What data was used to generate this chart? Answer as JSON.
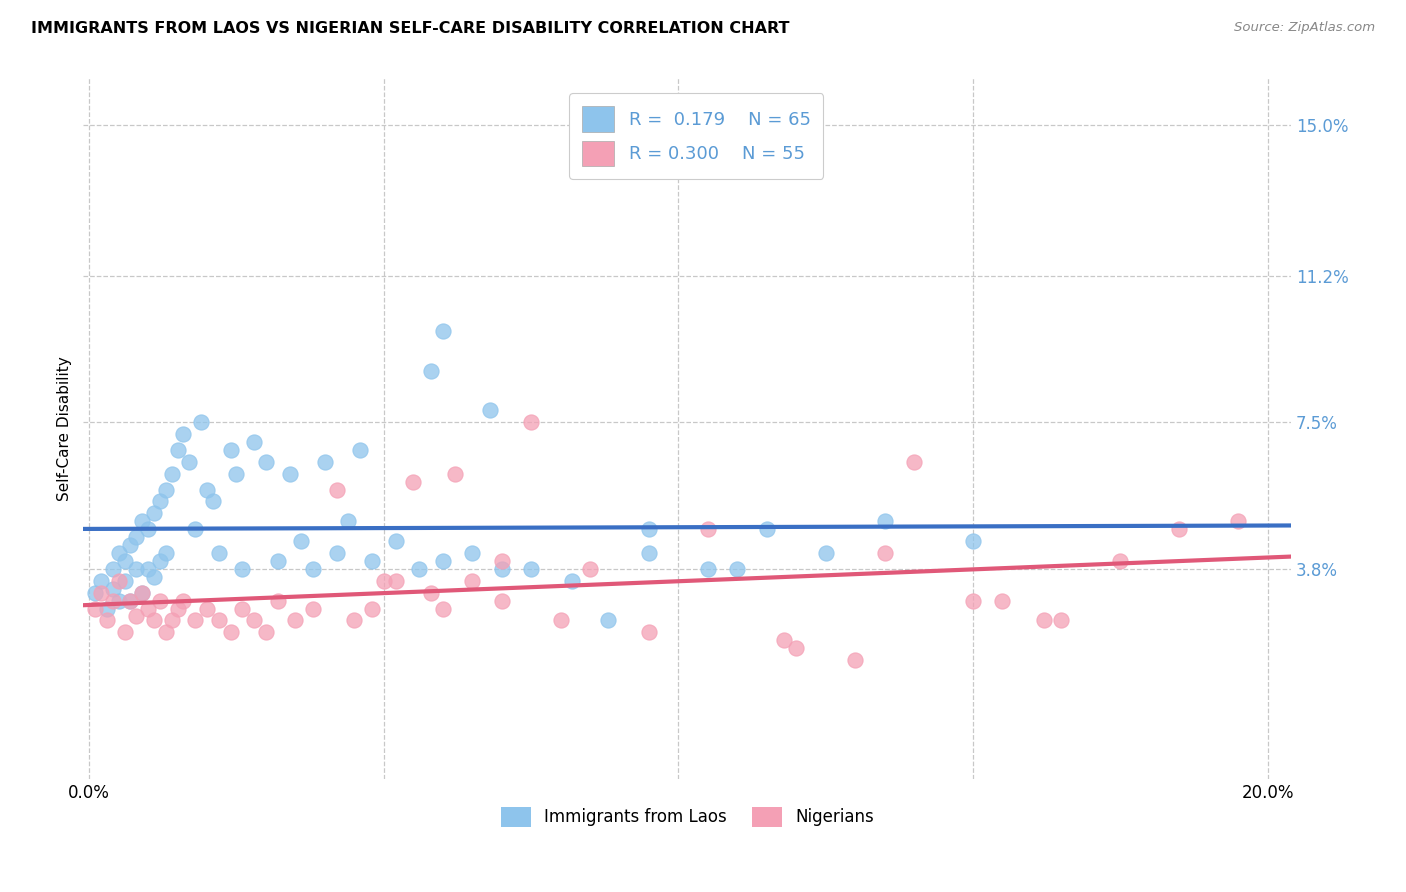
{
  "title": "IMMIGRANTS FROM LAOS VS NIGERIAN SELF-CARE DISABILITY CORRELATION CHART",
  "source": "Source: ZipAtlas.com",
  "ylabel": "Self-Care Disability",
  "y_ticks_right": [
    0.038,
    0.075,
    0.112,
    0.15
  ],
  "y_tick_labels_right": [
    "3.8%",
    "7.5%",
    "11.2%",
    "15.0%"
  ],
  "xlim": [
    -0.001,
    0.204
  ],
  "ylim": [
    -0.015,
    0.162
  ],
  "legend_laos_R": "0.179",
  "legend_laos_N": "65",
  "legend_nigerian_R": "0.300",
  "legend_nigerian_N": "55",
  "color_laos": "#8EC4EC",
  "color_nigerian": "#F4A0B5",
  "color_laos_line": "#3A6FC4",
  "color_nigerian_line": "#E05878",
  "color_axis_labels": "#5B9BD5",
  "background_color": "#FFFFFF",
  "laos_x": [
    0.001,
    0.002,
    0.003,
    0.004,
    0.004,
    0.005,
    0.005,
    0.006,
    0.006,
    0.007,
    0.007,
    0.008,
    0.008,
    0.009,
    0.009,
    0.01,
    0.01,
    0.011,
    0.011,
    0.012,
    0.012,
    0.013,
    0.013,
    0.014,
    0.015,
    0.016,
    0.017,
    0.018,
    0.019,
    0.02,
    0.021,
    0.022,
    0.024,
    0.025,
    0.026,
    0.028,
    0.03,
    0.032,
    0.034,
    0.036,
    0.038,
    0.04,
    0.042,
    0.044,
    0.046,
    0.048,
    0.052,
    0.056,
    0.06,
    0.065,
    0.07,
    0.075,
    0.082,
    0.088,
    0.095,
    0.105,
    0.115,
    0.125,
    0.135,
    0.15,
    0.06,
    0.058,
    0.068,
    0.095,
    0.11
  ],
  "laos_y": [
    0.032,
    0.035,
    0.028,
    0.038,
    0.033,
    0.042,
    0.03,
    0.04,
    0.035,
    0.044,
    0.03,
    0.046,
    0.038,
    0.05,
    0.032,
    0.048,
    0.038,
    0.052,
    0.036,
    0.055,
    0.04,
    0.058,
    0.042,
    0.062,
    0.068,
    0.072,
    0.065,
    0.048,
    0.075,
    0.058,
    0.055,
    0.042,
    0.068,
    0.062,
    0.038,
    0.07,
    0.065,
    0.04,
    0.062,
    0.045,
    0.038,
    0.065,
    0.042,
    0.05,
    0.068,
    0.04,
    0.045,
    0.038,
    0.04,
    0.042,
    0.038,
    0.038,
    0.035,
    0.025,
    0.042,
    0.038,
    0.048,
    0.042,
    0.05,
    0.045,
    0.098,
    0.088,
    0.078,
    0.048,
    0.038
  ],
  "nigerian_x": [
    0.001,
    0.002,
    0.003,
    0.004,
    0.005,
    0.006,
    0.007,
    0.008,
    0.009,
    0.01,
    0.011,
    0.012,
    0.013,
    0.014,
    0.015,
    0.016,
    0.018,
    0.02,
    0.022,
    0.024,
    0.026,
    0.028,
    0.03,
    0.032,
    0.035,
    0.038,
    0.042,
    0.045,
    0.05,
    0.055,
    0.06,
    0.065,
    0.07,
    0.075,
    0.08,
    0.048,
    0.052,
    0.058,
    0.062,
    0.07,
    0.085,
    0.095,
    0.105,
    0.12,
    0.135,
    0.155,
    0.165,
    0.175,
    0.185,
    0.195,
    0.14,
    0.15,
    0.162,
    0.118,
    0.13
  ],
  "nigerian_y": [
    0.028,
    0.032,
    0.025,
    0.03,
    0.035,
    0.022,
    0.03,
    0.026,
    0.032,
    0.028,
    0.025,
    0.03,
    0.022,
    0.025,
    0.028,
    0.03,
    0.025,
    0.028,
    0.025,
    0.022,
    0.028,
    0.025,
    0.022,
    0.03,
    0.025,
    0.028,
    0.058,
    0.025,
    0.035,
    0.06,
    0.028,
    0.035,
    0.04,
    0.075,
    0.025,
    0.028,
    0.035,
    0.032,
    0.062,
    0.03,
    0.038,
    0.022,
    0.048,
    0.018,
    0.042,
    0.03,
    0.025,
    0.04,
    0.048,
    0.05,
    0.065,
    0.03,
    0.025,
    0.02,
    0.015
  ]
}
